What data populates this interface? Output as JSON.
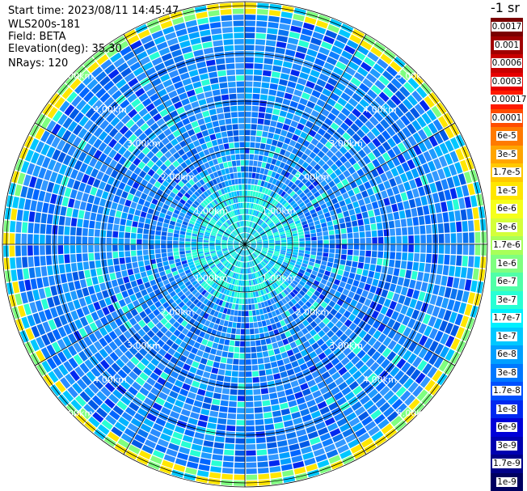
{
  "header": {
    "start_time": "Start time: 2023/08/11 14:45:47",
    "device": "WLS200s-181",
    "field": "Field: BETA",
    "elevation": "Elevation(deg): 35.30",
    "nrays": "NRays: 120"
  },
  "units_label": "-1 sr",
  "range_rings_km": [
    1,
    2,
    3,
    4,
    5
  ],
  "range_labels": [
    "1.00km",
    "2.00km",
    "3.00km",
    "4.00km",
    "5.00km"
  ],
  "nrays": 120,
  "colorbar": {
    "labels": [
      "0.0017",
      "0.001",
      "0.0006",
      "0.0003",
      "0.00017",
      "0.0001",
      "6e-5",
      "3e-5",
      "1.7e-5",
      "1e-5",
      "6e-6",
      "3e-6",
      "1.7e-6",
      "1e-6",
      "6e-7",
      "3e-7",
      "1.7e-7",
      "1e-7",
      "6e-8",
      "3e-8",
      "1.7e-8",
      "1e-8",
      "6e-9",
      "3e-9",
      "1.7e-9",
      "1e-9"
    ],
    "colors": [
      "#7a0000",
      "#a00000",
      "#c80000",
      "#e60000",
      "#ff1a00",
      "#ff4d00",
      "#ff7a00",
      "#ffa500",
      "#ffc800",
      "#ffe600",
      "#f5ff1a",
      "#d4ff3a",
      "#a8ff5a",
      "#7fff80",
      "#50ffa8",
      "#28ffd4",
      "#00f0ff",
      "#00c8ff",
      "#00a0ff",
      "#0078ff",
      "#0050ff",
      "#0028f0",
      "#0000d8",
      "#0000b0",
      "#000088",
      "#000060"
    ]
  }
}
